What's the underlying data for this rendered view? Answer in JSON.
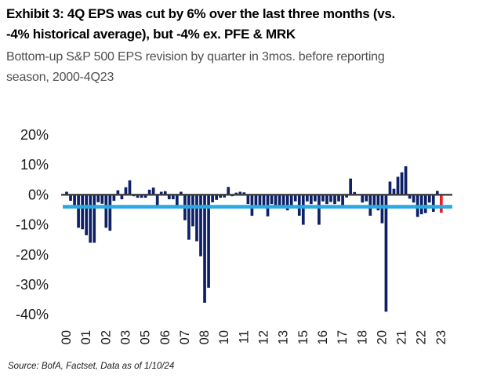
{
  "header": {
    "title_line1": "Exhibit 3: 4Q EPS was cut by 6% over the last three months (vs.",
    "title_line2": "-4% historical average), but -4% ex. PFE & MRK",
    "subtitle_line1": "Bottom-up S&P 500 EPS revision by quarter in 3mos. before reporting",
    "subtitle_line2": "season, 2000-4Q23"
  },
  "footer": {
    "source": "Source: BofA, Factset, Data as of 1/10/24"
  },
  "chart_data": {
    "type": "bar",
    "title": "Bottom-up S&P 500 EPS revision by quarter in 3mos. before reporting season, 2000-4Q23",
    "unit": "%",
    "ylim": [
      -40,
      20
    ],
    "yticks": [
      20,
      10,
      0,
      -10,
      -20,
      -30,
      -40
    ],
    "ytick_labels": [
      "20%",
      "10%",
      "0%",
      "-10%",
      "-20%",
      "-30%",
      "-40%"
    ],
    "x_axis": "quarters 1Q2000 - 4Q2023, one bar per quarter",
    "xtick_every_n_bars": 5,
    "xtick_labels": [
      "00",
      "01",
      "02",
      "03",
      "05",
      "06",
      "07",
      "08",
      "10",
      "11",
      "12",
      "13",
      "15",
      "16",
      "17",
      "18",
      "20",
      "21",
      "22",
      "23"
    ],
    "grid": "off",
    "legend": "none",
    "bar_color": "#0E2167",
    "axis_color": "#3d3d3d",
    "average_line": {
      "value": -4,
      "color": "#29A9E2"
    },
    "last_bar": {
      "quarter": "4Q23",
      "value": -6,
      "color": "#ED1C24"
    },
    "values_by_year": {
      "2000": [
        1,
        -2,
        -3.5,
        -11
      ],
      "2001": [
        -11.5,
        -13.5,
        -16,
        -16
      ],
      "2002": [
        -2.5,
        -3,
        -11,
        -12
      ],
      "2003": [
        -2,
        1.5,
        -1.5,
        2.5
      ],
      "2004": [
        4.8,
        -0.5,
        -1,
        -1
      ],
      "2005": [
        -1,
        1.7,
        2.4,
        -3.5
      ],
      "2006": [
        1,
        1.2,
        -1.5,
        -1.5
      ],
      "2007": [
        -4,
        1,
        -8.5,
        -15
      ],
      "2008": [
        -10.5,
        -15.5,
        -20.5,
        -36
      ],
      "2009": [
        -31,
        -2.5,
        -1.7,
        -1
      ],
      "2010": [
        -0.9,
        2.6,
        -0.5,
        0.7
      ],
      "2011": [
        1,
        0.8,
        -3.1,
        -7
      ],
      "2012": [
        -3.9,
        -3.5,
        -4.2,
        -7.2
      ],
      "2013": [
        -3.1,
        -4.2,
        -3.5,
        -4.2
      ],
      "2014": [
        -5.2,
        -4.2,
        -2.2,
        -7
      ],
      "2015": [
        -10,
        -2.2,
        -3.1,
        -2.2
      ],
      "2016": [
        -10,
        -2.2,
        -3.1,
        -2.4
      ],
      "2017": [
        -3.1,
        -2.2,
        -3.5,
        -0.9
      ],
      "2018": [
        5.4,
        0.9,
        -0.3,
        -2.6
      ],
      "2019": [
        -2.2,
        -7,
        -3.5,
        -5.2
      ],
      "2020": [
        -9.5,
        -39,
        4.4,
        2
      ],
      "2021": [
        6,
        7.5,
        9.5,
        -1.3
      ],
      "2022": [
        -2.6,
        -7.4,
        -6.5,
        -6.1
      ],
      "2023": [
        -2.6,
        -5.7,
        1.3,
        -6
      ]
    }
  }
}
